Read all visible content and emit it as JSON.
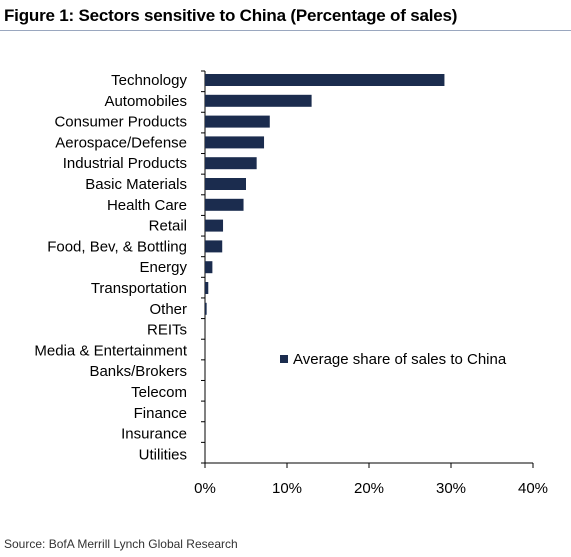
{
  "title": "Figure 1: Sectors sensitive to China (Percentage of sales)",
  "source": "Source: BofA Merrill Lynch Global Research",
  "chart_data": {
    "type": "bar",
    "orientation": "horizontal",
    "title": "Figure 1: Sectors sensitive to China (Percentage of sales)",
    "xlabel": "",
    "ylabel": "",
    "xlim": [
      0,
      40
    ],
    "x_ticks": [
      0,
      10,
      20,
      30,
      40
    ],
    "x_tick_labels": [
      "0%",
      "10%",
      "20%",
      "30%",
      "40%"
    ],
    "grid": false,
    "legend_position": "center-right",
    "bar_color": "#1b2c4e",
    "categories": [
      "Technology",
      "Automobiles",
      "Consumer Products",
      "Aerospace/Defense",
      "Industrial Products",
      "Basic Materials",
      "Health Care",
      "Retail",
      "Food, Bev, & Bottling",
      "Energy",
      "Transportation",
      "Other",
      "REITs",
      "Media & Entertainment",
      "Banks/Brokers",
      "Telecom",
      "Finance",
      "Insurance",
      "Utilities"
    ],
    "series": [
      {
        "name": "Average share of sales to China",
        "values": [
          29.2,
          13.0,
          7.9,
          7.2,
          6.3,
          5.0,
          4.7,
          2.2,
          2.1,
          0.9,
          0.4,
          0.2,
          0,
          0,
          0,
          0,
          0,
          0,
          0
        ]
      }
    ]
  }
}
